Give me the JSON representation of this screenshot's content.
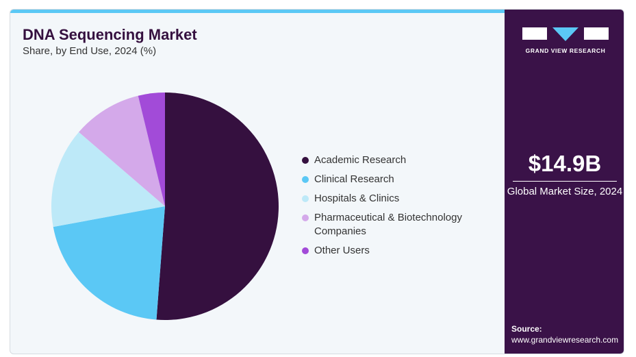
{
  "header": {
    "title": "DNA Sequencing Market",
    "subtitle": "Share, by End Use, 2024 (%)"
  },
  "sidebar": {
    "brand": "GRAND VIEW RESEARCH",
    "market_size": "$14.9B",
    "market_size_label": "Global Market Size, 2024",
    "source_label": "Source:",
    "source_url": "www.grandviewresearch.com"
  },
  "chart_data": {
    "type": "pie",
    "title": "DNA Sequencing Market",
    "subtitle": "Share, by End Use, 2024 (%)",
    "legend_position": "right",
    "categories": [
      "Academic Research",
      "Clinical Research",
      "Hospitals & Clinics",
      "Pharmaceutical & Biotechnology Companies",
      "Other Users"
    ],
    "values": [
      51.2,
      20.9,
      14.2,
      9.9,
      3.8
    ],
    "colors": [
      "#35103f",
      "#5bc8f5",
      "#bde9f8",
      "#d4a9ea",
      "#a24bd8"
    ]
  }
}
